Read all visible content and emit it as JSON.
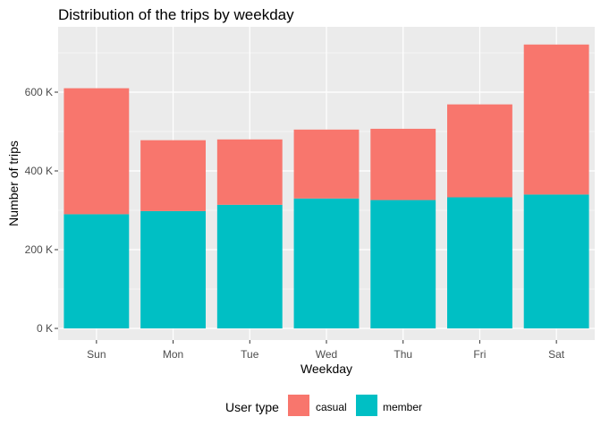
{
  "chart_data": {
    "type": "bar",
    "stacked": true,
    "title": "Distribution of the trips by weekday",
    "xlabel": "Weekday",
    "ylabel": "Number of trips",
    "categories": [
      "Sun",
      "Mon",
      "Tue",
      "Wed",
      "Thu",
      "Fri",
      "Sat"
    ],
    "series": [
      {
        "name": "casual",
        "color": "#F8766D",
        "values": [
          320000,
          180000,
          166000,
          175000,
          181000,
          236000,
          381000
        ]
      },
      {
        "name": "member",
        "color": "#00BFC4",
        "values": [
          290000,
          298000,
          314000,
          330000,
          326000,
          333000,
          340000
        ]
      }
    ],
    "ylim": [
      0,
      720000
    ],
    "yticks": [
      0,
      200000,
      400000,
      600000
    ],
    "ytick_labels": [
      "0 K",
      "200 K",
      "400 K",
      "600 K"
    ],
    "grid": true,
    "legend": {
      "title": "User type",
      "position": "bottom",
      "entries": [
        "casual",
        "member"
      ]
    }
  }
}
